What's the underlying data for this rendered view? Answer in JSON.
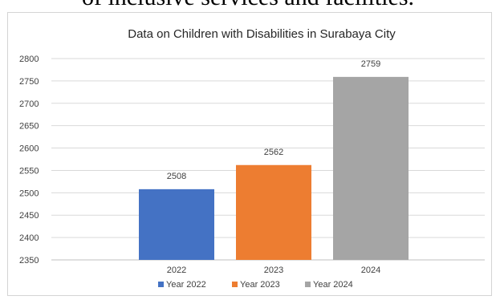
{
  "top_text": "of inclusive services and facilities.",
  "chart_data": {
    "type": "bar",
    "title": "Data on Children with Disabilities in Surabaya City",
    "categories": [
      "2022",
      "2023",
      "2024"
    ],
    "values": [
      2508,
      2562,
      2759
    ],
    "value_labels": [
      "2508",
      "2562",
      "2759"
    ],
    "series_names": [
      "Year 2022",
      "Year 2023",
      "Year 2024"
    ],
    "colors": [
      "#4472c4",
      "#ed7d31",
      "#a5a5a5"
    ],
    "ylim": [
      2350,
      2800
    ],
    "yticks": [
      2350,
      2400,
      2450,
      2500,
      2550,
      2600,
      2650,
      2700,
      2750,
      2800
    ],
    "grid": true,
    "legend_position": "bottom"
  }
}
